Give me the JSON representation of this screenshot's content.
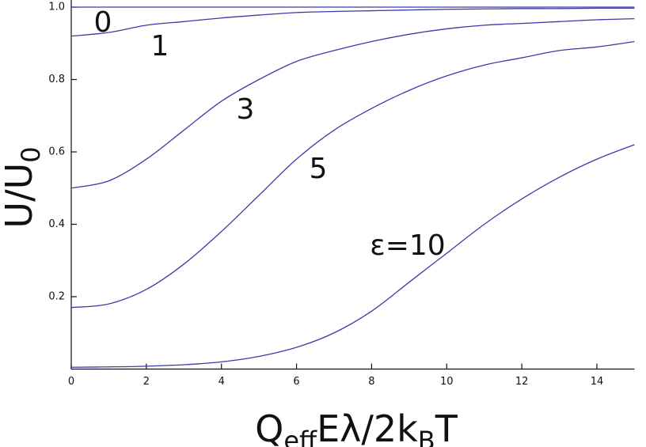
{
  "chart_data": {
    "type": "line",
    "x": [
      0,
      1,
      2,
      3,
      4,
      5,
      6,
      7,
      8,
      9,
      10,
      11,
      12,
      13,
      14,
      15
    ],
    "series": [
      {
        "name": "0",
        "color": "#3b3ba6",
        "values": [
          1,
          1,
          1,
          1,
          1,
          1,
          1,
          1,
          1,
          1,
          1,
          1,
          1,
          1,
          1,
          1
        ]
      },
      {
        "name": "1",
        "color": "#3b3ba6",
        "values": [
          0.92,
          0.93,
          0.95,
          0.96,
          0.97,
          0.978,
          0.985,
          0.988,
          0.99,
          0.992,
          0.994,
          0.995,
          0.996,
          0.996,
          0.997,
          0.997
        ]
      },
      {
        "name": "3",
        "color": "#3b3ba6",
        "values": [
          0.5,
          0.52,
          0.58,
          0.66,
          0.74,
          0.8,
          0.85,
          0.88,
          0.905,
          0.925,
          0.94,
          0.95,
          0.955,
          0.96,
          0.965,
          0.968
        ]
      },
      {
        "name": "5",
        "color": "#3b3ba6",
        "values": [
          0.17,
          0.18,
          0.22,
          0.29,
          0.38,
          0.48,
          0.58,
          0.66,
          0.72,
          0.77,
          0.81,
          0.84,
          0.86,
          0.88,
          0.89,
          0.905
        ]
      },
      {
        "name": "ε=10",
        "color": "#3b3ba6",
        "values": [
          0.005,
          0.006,
          0.008,
          0.012,
          0.02,
          0.035,
          0.06,
          0.1,
          0.16,
          0.24,
          0.32,
          0.4,
          0.47,
          0.53,
          0.58,
          0.62
        ]
      }
    ],
    "xlim": [
      0,
      15
    ],
    "xticks": [
      0,
      2,
      4,
      6,
      8,
      10,
      12,
      14
    ],
    "ylim": [
      0,
      1
    ],
    "yticks": [
      0.2,
      0.4,
      0.6,
      0.8,
      {
        "value": 1,
        "label": "1.0"
      }
    ],
    "ylabel_parts": [
      "U/U",
      "0"
    ],
    "xlabel_parts": [
      "Q",
      "eff",
      "Eλ/2k",
      "B",
      "T"
    ]
  }
}
